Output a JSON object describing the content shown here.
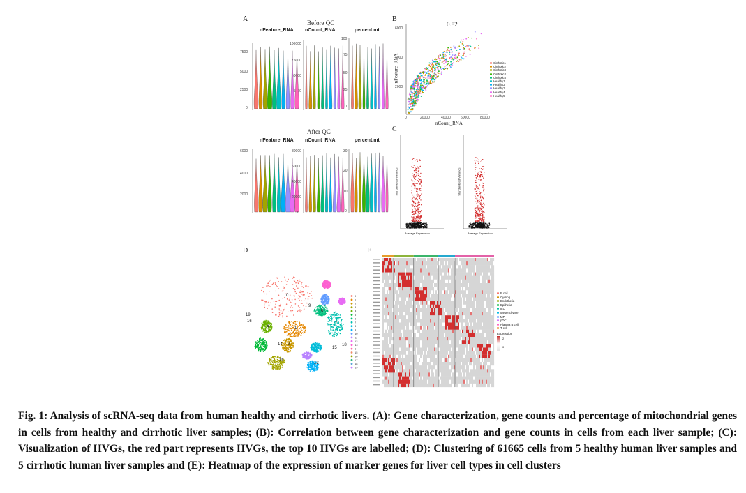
{
  "panels": {
    "A": {
      "letter": "A",
      "before_title": "Before QC",
      "after_title": "After QC",
      "metrics": [
        "nFeature_RNA",
        "nCount_RNA",
        "percent.mt"
      ],
      "before_ticks": {
        "nFeature_RNA": [
          "7500",
          "5000",
          "2500",
          "0"
        ],
        "nCount_RNA": [
          "100000",
          "75000",
          "50000",
          "25000"
        ],
        "percent_mt": [
          "100",
          "75",
          "50",
          "25",
          "0"
        ]
      },
      "after_ticks": {
        "nFeature_RNA": [
          "6000",
          "4000",
          "2000"
        ],
        "nCount_RNA": [
          "80000",
          "60000",
          "40000",
          "20000",
          "0"
        ],
        "percent_mt": [
          "30",
          "20",
          "10",
          "0"
        ]
      }
    },
    "B": {
      "letter": "B",
      "correlation": "0.82",
      "xlabel": "nCount_RNA",
      "ylabel": "nFeature_RNA",
      "xticks": [
        "0",
        "20000",
        "40000",
        "60000",
        "80000"
      ],
      "yticks": [
        "6000",
        "4000",
        "2000"
      ],
      "legend": [
        "Cirrhotic1",
        "Cirrhotic2",
        "Cirrhotic3",
        "Cirrhotic4",
        "Cirrhotic5",
        "Healthy1",
        "Healthy2",
        "Healthy3",
        "Healthy4",
        "Healthy5"
      ],
      "legend_colors": [
        "#f8766d",
        "#d89000",
        "#a3a500",
        "#39b600",
        "#00bf7d",
        "#00bfc4",
        "#00b0f6",
        "#9590ff",
        "#e76bf3",
        "#ff62bc"
      ]
    },
    "C": {
      "letter": "C",
      "xlabel": "Average Expression",
      "ylabel": "Standardized Variance"
    },
    "D": {
      "letter": "D",
      "clusters": [
        "0",
        "1",
        "2",
        "3",
        "4",
        "5",
        "6",
        "7",
        "8",
        "9",
        "10",
        "11",
        "12",
        "13",
        "14",
        "15",
        "16",
        "17",
        "18",
        "19"
      ]
    },
    "E": {
      "letter": "E",
      "legend": [
        "B cell",
        "Cycling",
        "Endothelia",
        "Epithelia",
        "ILC",
        "Mesenchyme",
        "MP",
        "pDC",
        "Plasma B cell",
        "T cell"
      ],
      "legend_colors": [
        "#f8766d",
        "#d39200",
        "#93aa00",
        "#00ba38",
        "#00c19f",
        "#00b9e3",
        "#619cff",
        "#db72fb",
        "#ff61c3",
        "#e88526"
      ],
      "expression_label": "Expression",
      "scale_ticks": [
        "2",
        "0"
      ]
    }
  },
  "caption": "Fig. 1: Analysis of scRNA-seq data from human healthy and cirrhotic livers. (A): Gene characterization, gene counts and percentage of mitochondrial genes in cells from healthy and cirrhotic liver samples; (B): Correlation between gene characterization and gene counts in cells from each liver sample; (C): Visualization of HVGs, the red part represents HVGs, the top 10 HVGs are labelled; (D): Clustering of 61665 cells from 5 healthy human liver samples and 5 cirrhotic human liver samples and (E): Heatmap of the expression of marker genes for liver cell types in cell clusters"
}
